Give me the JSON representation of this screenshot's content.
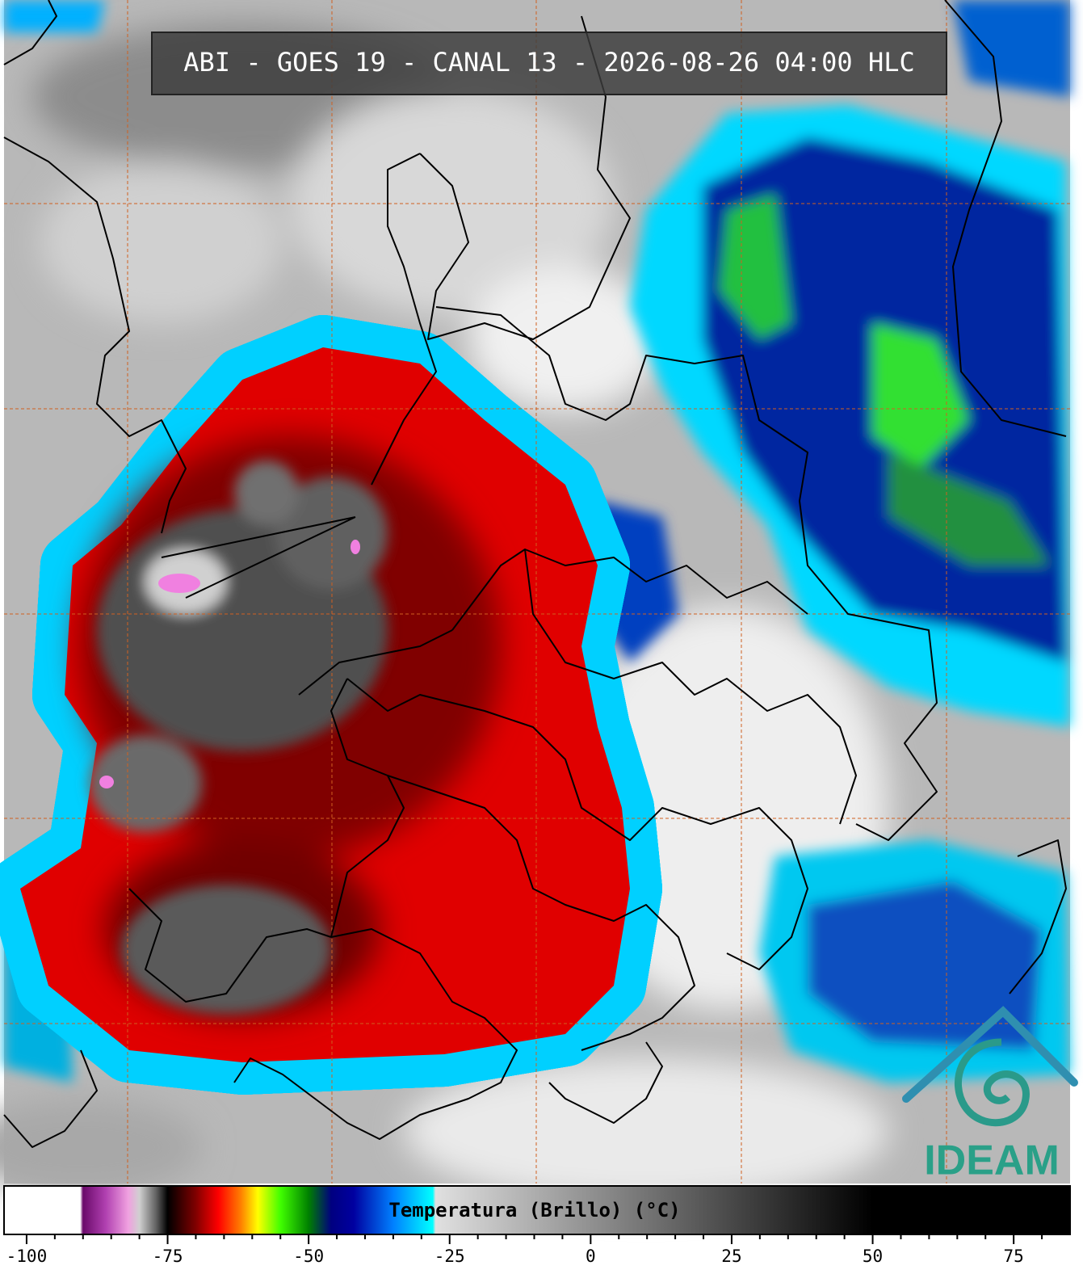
{
  "header": {
    "title": "ABI - GOES 19 - CANAL 13 - 2026-08-26 04:00 HLC"
  },
  "colorbar": {
    "label": "Temperatura (Brillo) (°C)",
    "range": [
      -104,
      85
    ],
    "ticks": [
      -100,
      -75,
      -50,
      -25,
      0,
      25,
      50,
      75
    ],
    "minor_ticks": [
      -95,
      -90,
      -85,
      -80,
      -70,
      -65,
      -60,
      -55,
      -45,
      -40,
      -35,
      -30,
      -20,
      -15,
      -10,
      -5,
      5,
      10,
      15,
      20,
      30,
      35,
      40,
      45,
      55,
      60,
      65,
      70,
      80
    ],
    "colors": [
      {
        "value": -104,
        "color": "#ffffff"
      },
      {
        "value": -90.5,
        "color": "#ffffff"
      },
      {
        "value": -90,
        "color": "#6a0a6a"
      },
      {
        "value": -86,
        "color": "#b040b0"
      },
      {
        "value": -82,
        "color": "#f0a0e0"
      },
      {
        "value": -80,
        "color": "#d0d0d0"
      },
      {
        "value": -77,
        "color": "#606060"
      },
      {
        "value": -75,
        "color": "#000000"
      },
      {
        "value": -70,
        "color": "#800000"
      },
      {
        "value": -66,
        "color": "#ff0000"
      },
      {
        "value": -62,
        "color": "#ff8000"
      },
      {
        "value": -59,
        "color": "#ffff00"
      },
      {
        "value": -55,
        "color": "#40ff00"
      },
      {
        "value": -50,
        "color": "#008000"
      },
      {
        "value": -46,
        "color": "#000080"
      },
      {
        "value": -42,
        "color": "#0000a0"
      },
      {
        "value": -35,
        "color": "#0080ff"
      },
      {
        "value": -28,
        "color": "#00ffff"
      },
      {
        "value": -27.5,
        "color": "#e0e0e0"
      },
      {
        "value": 50,
        "color": "#000000"
      },
      {
        "value": 85,
        "color": "#000000"
      }
    ]
  },
  "logo": {
    "text": "IDEAM"
  }
}
